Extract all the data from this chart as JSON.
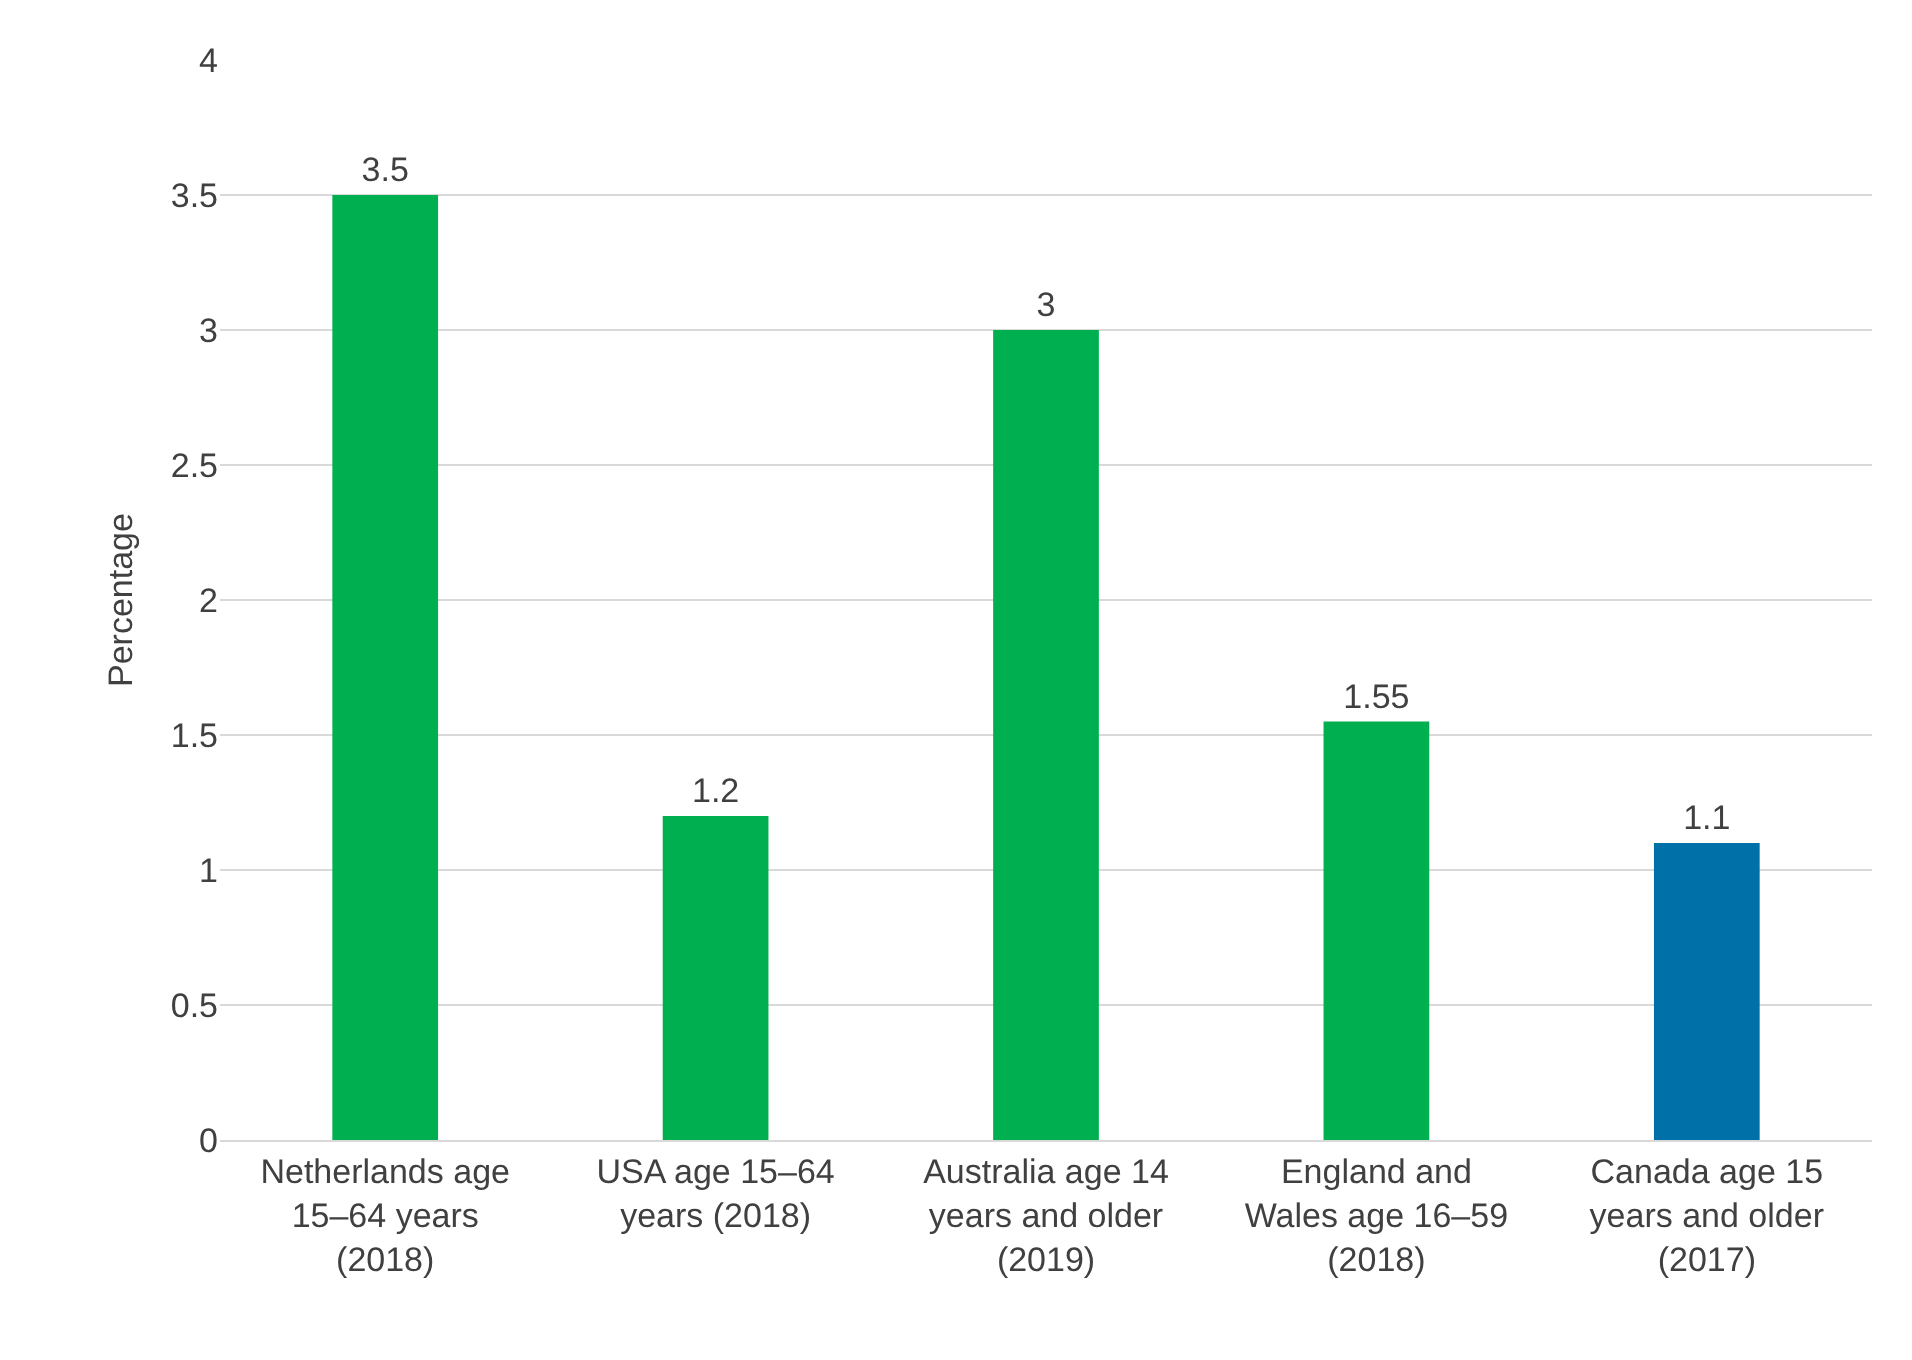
{
  "chart_data": {
    "type": "bar",
    "ylabel": "Percentage",
    "categories": [
      "Netherlands age 15–64 years (2018)",
      "USA age 15–64 years (2018)",
      "Australia age 14 years and older (2019)",
      "England and Wales age 16–59 (2018)",
      "Canada age 15 years and older (2017)"
    ],
    "values": [
      3.5,
      1.2,
      3,
      1.55,
      1.1
    ],
    "colors": [
      "#00b050",
      "#00b050",
      "#00b050",
      "#00b050",
      "#0070a8"
    ],
    "ylim": [
      0,
      4
    ],
    "yticks": [
      0,
      0.5,
      1,
      1.5,
      2,
      2.5,
      3,
      3.5,
      4
    ],
    "grid": "y",
    "data_labels": true,
    "legend": false
  }
}
